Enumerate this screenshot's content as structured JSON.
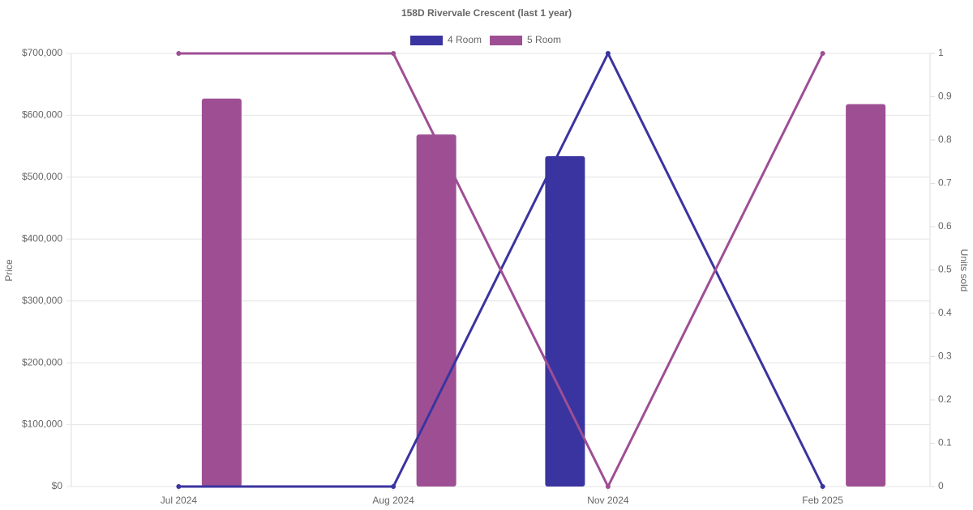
{
  "chart_data": {
    "type": "bar-line",
    "title": "158D Rivervale Crescent (last 1 year)",
    "y_label": "Price",
    "y2_label": "Units sold",
    "categories": [
      "Jul 2024",
      "Aug 2024",
      "Nov 2024",
      "Feb 2025"
    ],
    "series": [
      {
        "name": "4 Room",
        "color": "#3a34a0",
        "values": [
          null,
          null,
          534000,
          null
        ],
        "units": [
          0,
          0,
          1,
          0
        ]
      },
      {
        "name": "5 Room",
        "color": "#9e4f94",
        "values": [
          627000,
          569000,
          null,
          618000
        ],
        "units": [
          1,
          1,
          0,
          1
        ]
      }
    ],
    "ylim": [
      0,
      700000
    ],
    "yticks": [
      {
        "value": 0,
        "label": "$0"
      },
      {
        "value": 100000,
        "label": "$100,000"
      },
      {
        "value": 200000,
        "label": "$200,000"
      },
      {
        "value": 300000,
        "label": "$300,000"
      },
      {
        "value": 400000,
        "label": "$400,000"
      },
      {
        "value": 500000,
        "label": "$500,000"
      },
      {
        "value": 600000,
        "label": "$600,000"
      },
      {
        "value": 700000,
        "label": "$700,000"
      }
    ],
    "y2lim": [
      0,
      1
    ],
    "y2ticks": [
      0,
      0.1,
      0.2,
      0.3,
      0.4,
      0.5,
      0.6,
      0.7,
      0.8,
      0.9,
      1
    ],
    "grid": true
  }
}
